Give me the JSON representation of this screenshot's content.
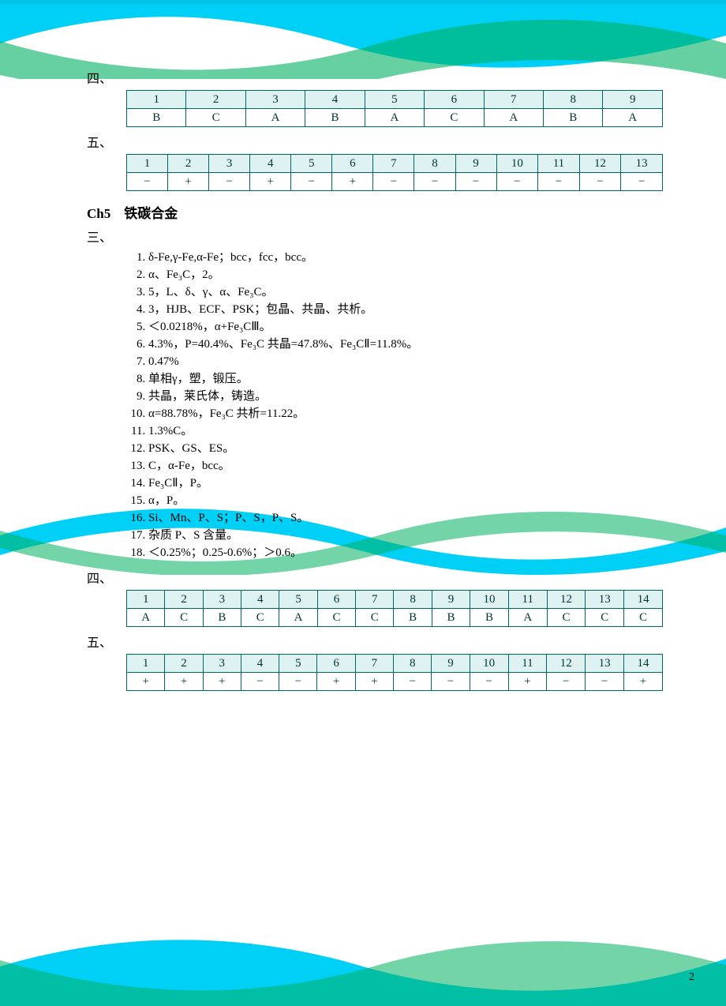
{
  "section4_label": "四、",
  "section5_label": "五、",
  "section3_label": "三、",
  "ch5_title": "Ch5　铁碳合金",
  "page_number": "2",
  "table_a": {
    "headers": [
      "1",
      "2",
      "3",
      "4",
      "5",
      "6",
      "7",
      "8",
      "9"
    ],
    "values": [
      "B",
      "C",
      "A",
      "B",
      "A",
      "C",
      "A",
      "B",
      "A"
    ]
  },
  "table_b": {
    "headers": [
      "1",
      "2",
      "3",
      "4",
      "5",
      "6",
      "7",
      "8",
      "9",
      "10",
      "11",
      "12",
      "13"
    ],
    "values": [
      "−",
      "+",
      "−",
      "+",
      "−",
      "+",
      "−",
      "−",
      "−",
      "−",
      "−",
      "−",
      "−"
    ]
  },
  "ch5_fill": [
    "δ-Fe,γ-Fe,α-Fe；bcc，fcc，bcc。",
    "α、Fe₃C，2。",
    "5，L、δ、γ、α、Fe₃C。",
    "3，HJB、ECF、PSK；包晶、共晶、共析。",
    "＜0.0218%，α+Fe₃CⅢ。",
    "4.3%，P=40.4%、Fe₃C 共晶=47.8%、Fe₃CⅡ=11.8%。",
    "0.47%",
    "单相γ，塑，锻压。",
    "共晶，莱氏体，铸造。",
    "α=88.78%，Fe₃C 共析=11.22。",
    "1.3%C。",
    "PSK、GS、ES。",
    "C，α-Fe，bcc。",
    "Fe₃CⅡ，P。",
    "α，P。",
    "Si、Mn、P、S；P、S，P、S。",
    "杂质 P、S 含量。",
    "＜0.25%；0.25-0.6%；＞0.6。"
  ],
  "table_c": {
    "headers": [
      "1",
      "2",
      "3",
      "4",
      "5",
      "6",
      "7",
      "8",
      "9",
      "10",
      "11",
      "12",
      "13",
      "14"
    ],
    "values": [
      "A",
      "C",
      "B",
      "C",
      "A",
      "C",
      "C",
      "B",
      "B",
      "B",
      "A",
      "C",
      "C",
      "C"
    ]
  },
  "table_d": {
    "headers": [
      "1",
      "2",
      "3",
      "4",
      "5",
      "6",
      "7",
      "8",
      "9",
      "10",
      "11",
      "12",
      "13",
      "14"
    ],
    "values": [
      "+",
      "+",
      "+",
      "−",
      "−",
      "+",
      "+",
      "−",
      "−",
      "−",
      "+",
      "−",
      "−",
      "+"
    ]
  },
  "style": {
    "border_color": "#006666",
    "header_bg": "#dff2f2",
    "font_body": 15,
    "font_title": 17
  }
}
